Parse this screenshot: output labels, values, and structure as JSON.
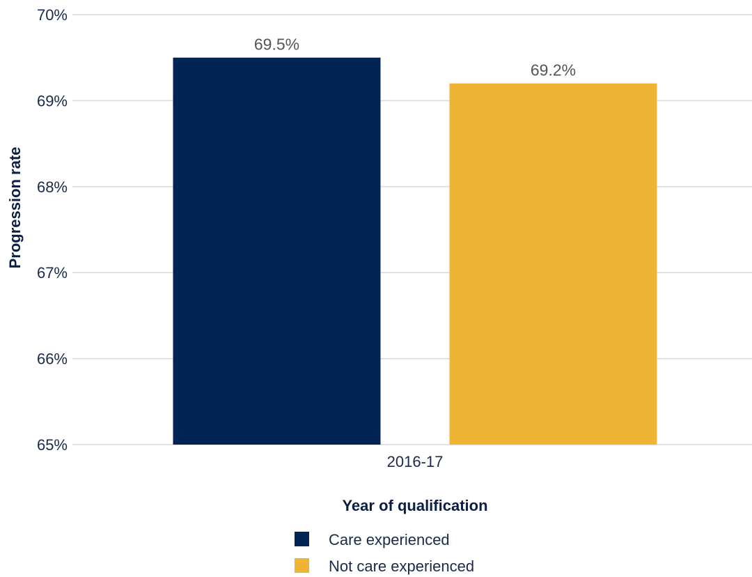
{
  "chart_data": {
    "type": "bar",
    "categories": [
      "2016-17"
    ],
    "series": [
      {
        "name": "Care experienced",
        "values": [
          69.5
        ],
        "color": "#002453",
        "value_label": "69.5%"
      },
      {
        "name": "Not care experienced",
        "values": [
          69.2
        ],
        "color": "#f0b435",
        "value_label": "69.2%"
      }
    ],
    "xlabel": "Year of qualification",
    "ylabel": "Progression rate",
    "ylim": [
      65,
      70
    ],
    "yticks": [
      65,
      66,
      67,
      68,
      69,
      70
    ],
    "ytick_labels": [
      "65%",
      "66%",
      "67%",
      "68%",
      "69%",
      "70%"
    ],
    "grid": true,
    "legend_position": "bottom"
  }
}
